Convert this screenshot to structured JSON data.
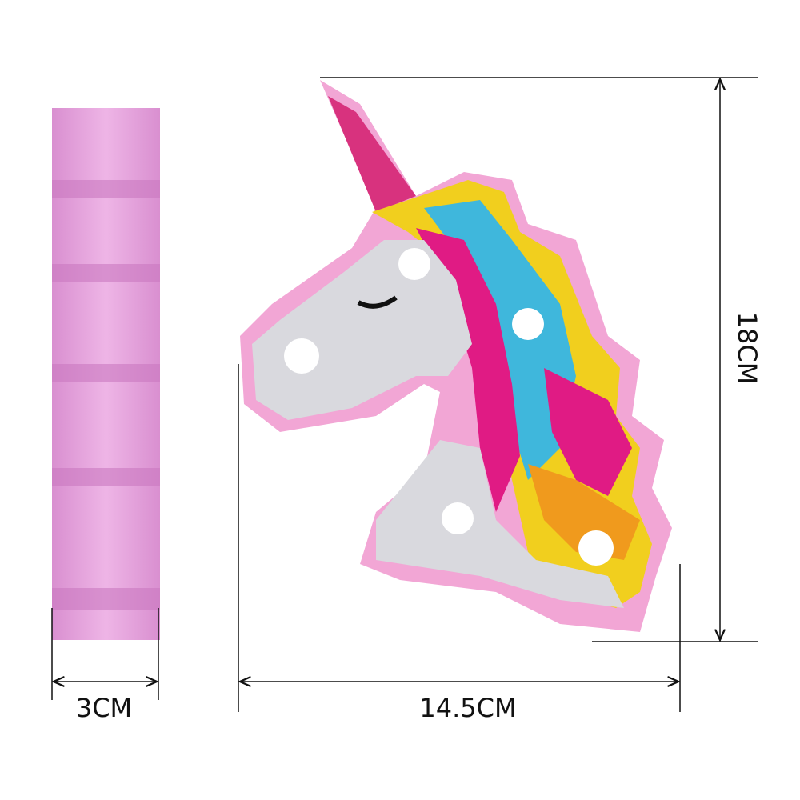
{
  "dimensions": {
    "depth": "3CM",
    "width": "14.5CM",
    "height": "18CM"
  }
}
